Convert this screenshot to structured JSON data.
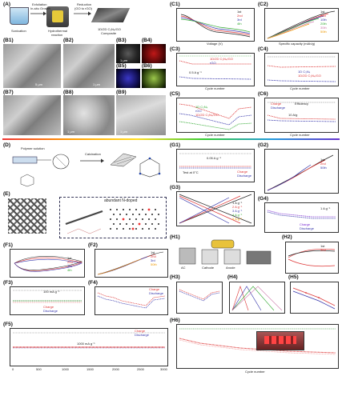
{
  "labels": {
    "A": "(A)",
    "B1": "(B1)",
    "B2": "(B2)",
    "B3": "(B3)",
    "B4": "(B4)",
    "B5": "(B5)",
    "B6": "(B6)",
    "B7": "(B7)",
    "B8": "(B8)",
    "B9": "(B9)",
    "C1": "(C1)",
    "C2": "(C2)",
    "C3": "(C3)",
    "C4": "(C4)",
    "C5": "(C5)",
    "C6": "(C6)",
    "D": "(D)",
    "E": "(E)",
    "F1": "(F1)",
    "F2": "(F2)",
    "F3": "(F3)",
    "F4": "(F4)",
    "F5": "(F5)",
    "G1": "(G1)",
    "G2": "(G2)",
    "G3": "(G3)",
    "G4": "(G4)",
    "H1": "(H1)",
    "H2": "(H2)",
    "H3": "(H3)",
    "H4": "(H4)",
    "H5": "(H5)",
    "H6": "(H6)"
  },
  "panel_a": {
    "step1": "Exfoliation",
    "step1b": "In-situ Growth",
    "step2": "Reduction",
    "step2b": "(GO to rGO)",
    "caption1": "Sonication",
    "caption2": "Hydrothermal",
    "caption2b": "reaction",
    "caption3": "1D/2D C₃N₄/GO",
    "caption3b": "Composite"
  },
  "panel_b": {
    "scale_b1": "5 μm",
    "scale_b2": "1 μm",
    "scale_b3": "1 μm",
    "scale_b8": "1 μm",
    "scale_b9": "1 μm"
  },
  "panel_c": {
    "c1_legend": [
      "1st",
      "2nd",
      "3rd",
      "4th"
    ],
    "c2_legend": [
      "1st",
      "2nd",
      "10th",
      "20th",
      "30th",
      "50th"
    ],
    "c3_legend": [
      "1D/2D C₃N₄/GO",
      "rGO"
    ],
    "c3_rate": "0.5 A g⁻¹",
    "c4_legend": [
      "1D C₃N₄",
      "1D/2D C₃N₄/GO"
    ],
    "c5_legend": [
      "1D C₃N₄",
      "rGO",
      "1D/2D C₃N₄/GO"
    ],
    "c6_legend": [
      "Charge",
      "Discharge",
      "Efficiency"
    ],
    "c6_rate": "10 A/g",
    "xlabel_cycle": "Cycle number",
    "xlabel_voltage": "Voltage (V)",
    "xlabel_capacity": "Specific capacity (mAh/g)"
  },
  "panel_d": {
    "label": "Polymer solution",
    "step": "Calcination"
  },
  "panel_e": {
    "label": "abundant N-doped"
  },
  "panel_f": {
    "f1_legend": [
      "1st",
      "2nd",
      "3rd",
      "4th"
    ],
    "f2_legend": [
      "1st",
      "2nd",
      "3rd",
      "50th"
    ],
    "f3_rate": "100 mA g⁻¹",
    "f3_legend": [
      "Charge",
      "Discharge"
    ],
    "f4_legend": [
      "Charge",
      "Discharge"
    ],
    "f5_rate": "1000 mA g⁻¹",
    "f5_legend": [
      "Charge",
      "Discharge"
    ],
    "f5_xticks": [
      "0",
      "500",
      "1000",
      "1500",
      "2000",
      "2500",
      "3000"
    ]
  },
  "panel_g": {
    "g1_rate": "0.05 A g⁻¹",
    "g1_note": "Test at 0°C",
    "g1_legend": [
      "Charge",
      "Discharge"
    ],
    "g2_legend": [
      "1st",
      "2nd",
      "50th"
    ],
    "g3_legend": [
      "1 A g⁻¹",
      "2 A g⁻¹",
      "3 A g⁻¹",
      "4 A g⁻¹",
      "5 A g⁻¹"
    ],
    "g4_rate": "1 A g⁻¹",
    "g4_legend": [
      "Charge",
      "Discharge"
    ]
  },
  "panel_h": {
    "h1_labels": [
      "AC",
      "Cathode",
      "Anode"
    ],
    "h2_legend": [
      "1st",
      "2nd"
    ],
    "h6_xlabel": "Cycle number"
  }
}
